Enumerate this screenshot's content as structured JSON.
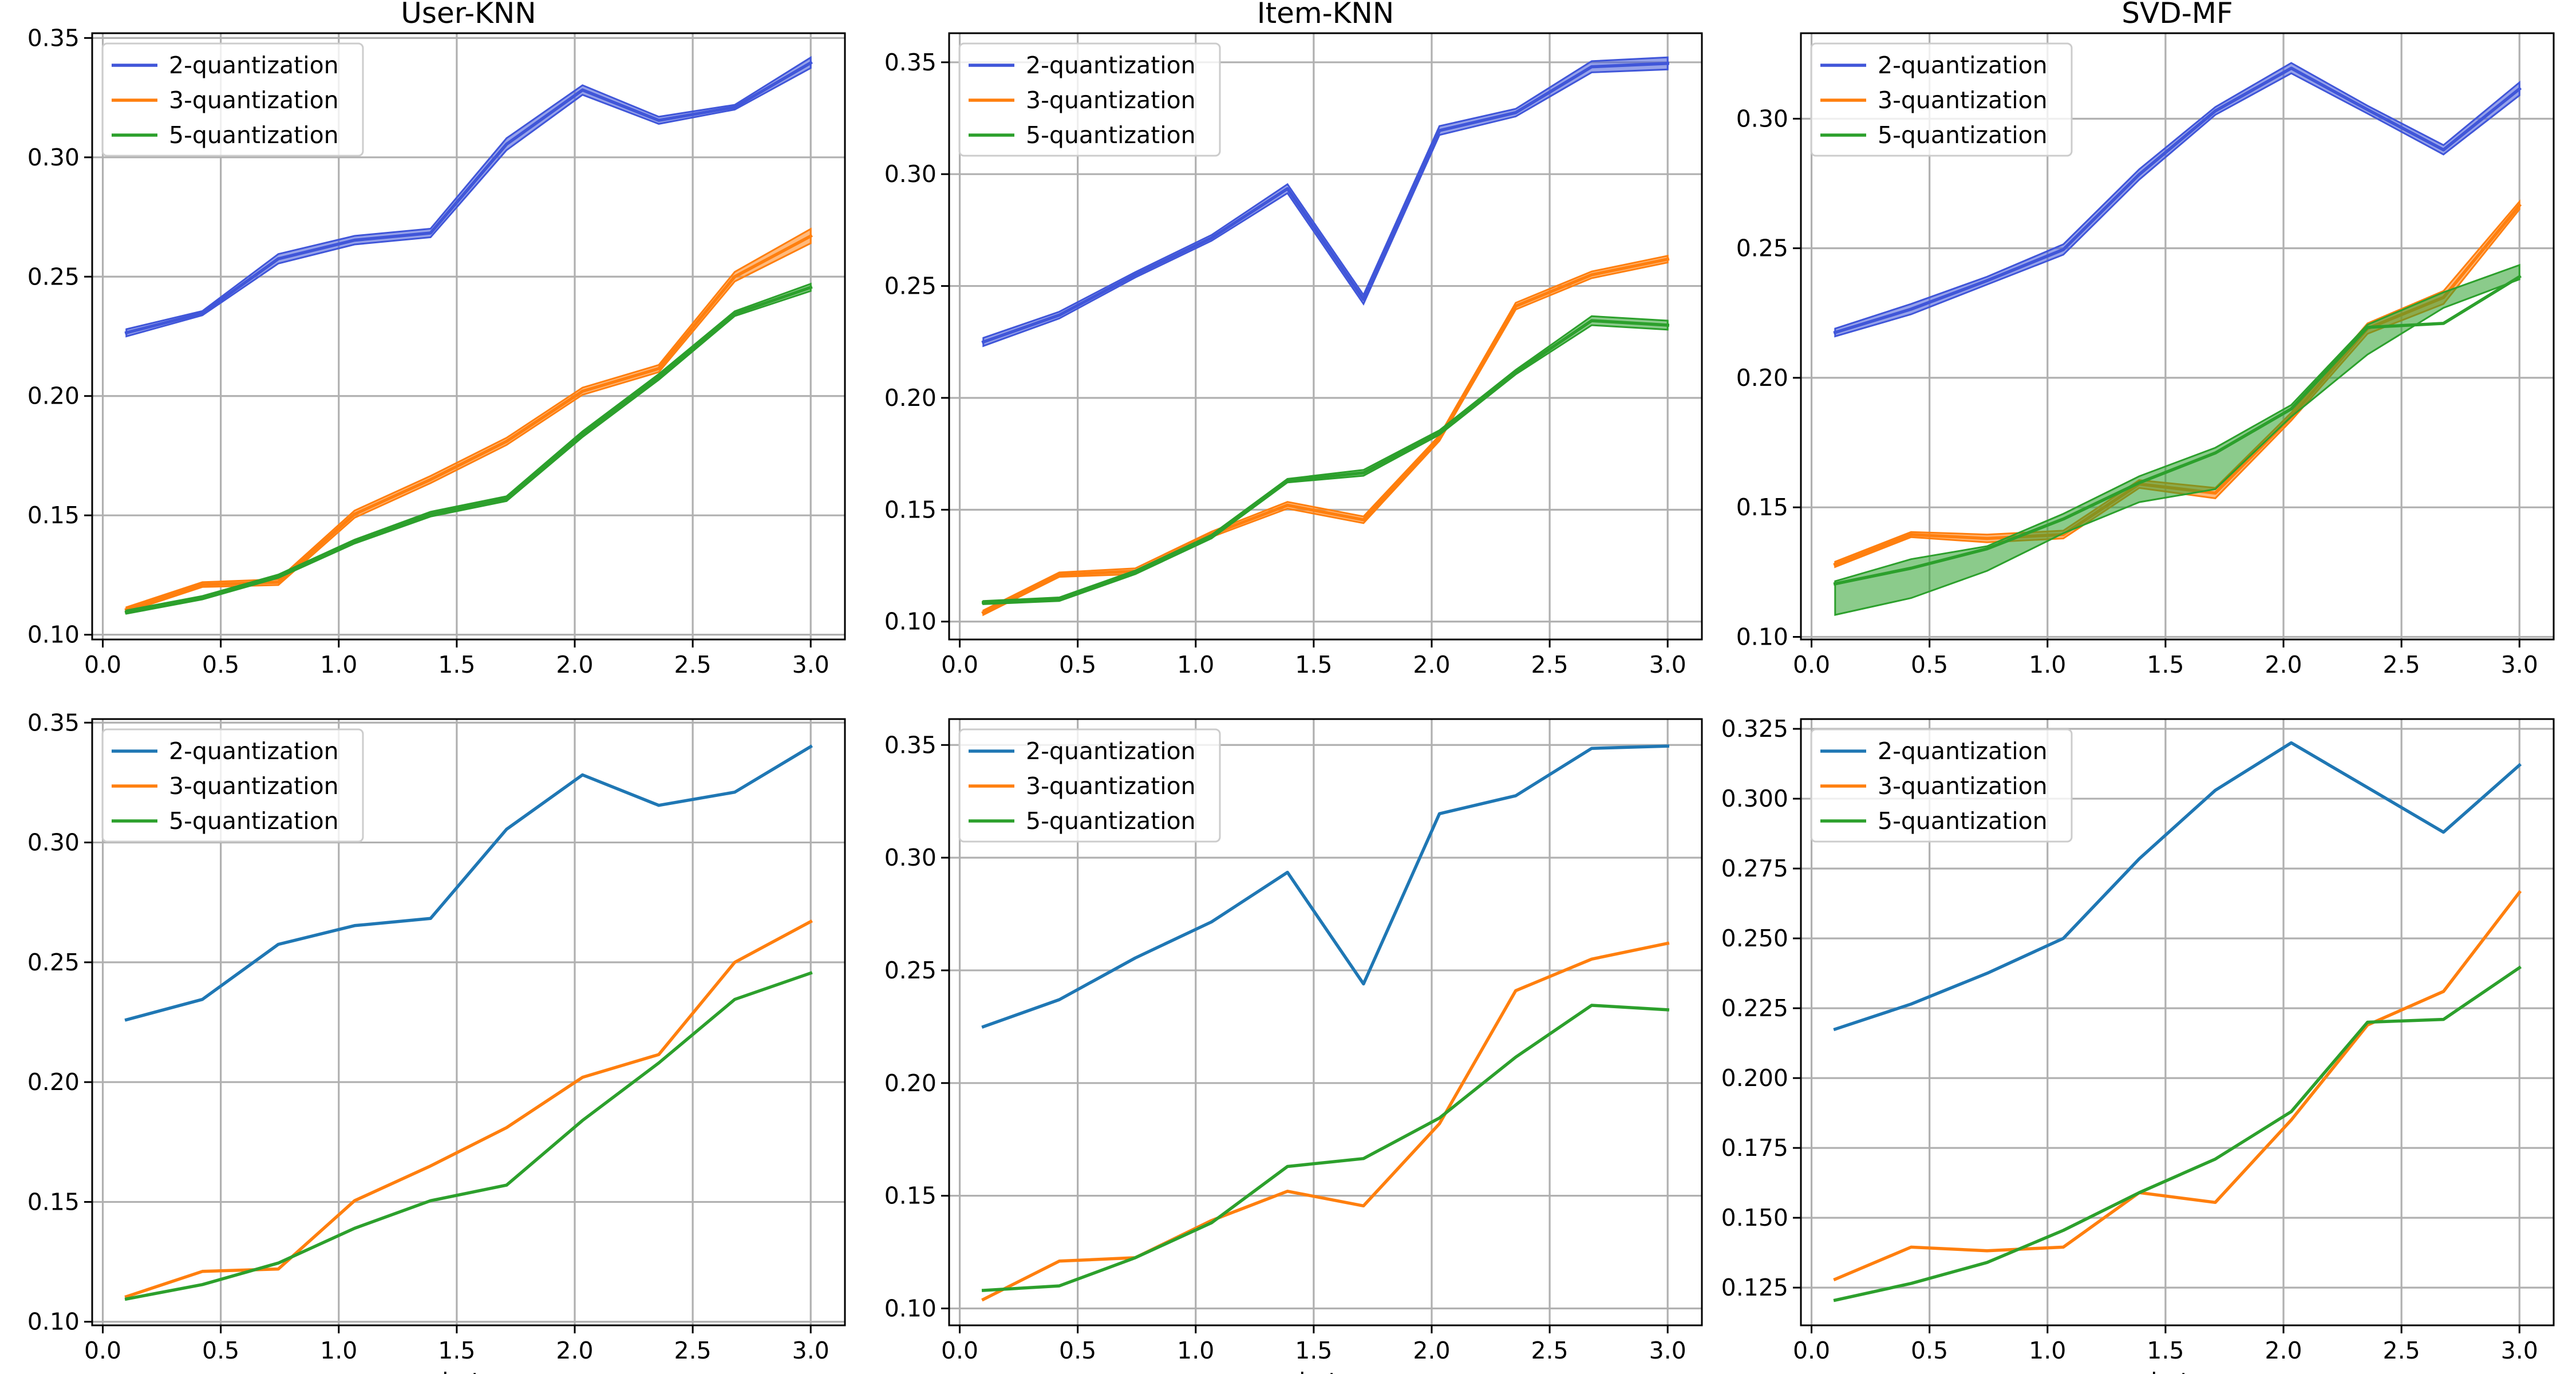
{
  "chart_data": [
    {
      "type": "line",
      "title": "User-KNN",
      "xlabel": "",
      "ylabel": "",
      "x": [
        0.1,
        0.422,
        0.744,
        1.067,
        1.389,
        1.711,
        2.033,
        2.356,
        2.678,
        3.0
      ],
      "xticks": [
        "0.0",
        "0.5",
        "1.0",
        "1.5",
        "2.0",
        "2.5",
        "3.0"
      ],
      "yticks": [
        "0.10",
        "0.15",
        "0.20",
        "0.25",
        "0.30",
        "0.35"
      ],
      "xlim": [
        -0.045,
        3.145
      ],
      "ylim": [
        0.098,
        0.352
      ],
      "grid": true,
      "legend": "top-left",
      "band": true,
      "series": [
        {
          "name": "2-quantization",
          "color": "#4056d9",
          "values": [
            0.2265,
            0.2347,
            0.2575,
            0.2653,
            0.2683,
            0.3055,
            0.3282,
            0.3155,
            0.321,
            0.3396
          ],
          "lower": [
            0.225,
            0.2338,
            0.2555,
            0.2635,
            0.2665,
            0.303,
            0.3262,
            0.314,
            0.32,
            0.3374
          ],
          "upper": [
            0.228,
            0.2356,
            0.2595,
            0.2671,
            0.2701,
            0.308,
            0.3302,
            0.317,
            0.322,
            0.3418
          ]
        },
        {
          "name": "3-quantization",
          "color": "#ff7f0e",
          "values": [
            0.1105,
            0.121,
            0.122,
            0.1505,
            0.165,
            0.181,
            0.202,
            0.2115,
            0.25,
            0.267
          ],
          "lower": [
            0.1095,
            0.12,
            0.1208,
            0.149,
            0.1635,
            0.1795,
            0.2005,
            0.21,
            0.248,
            0.264
          ],
          "upper": [
            0.1115,
            0.122,
            0.1232,
            0.152,
            0.1665,
            0.1825,
            0.2035,
            0.213,
            0.252,
            0.27
          ]
        },
        {
          "name": "5-quantization",
          "color": "#2ca02c",
          "values": [
            0.1095,
            0.1155,
            0.1245,
            0.139,
            0.1505,
            0.157,
            0.184,
            0.208,
            0.2345,
            0.2455
          ],
          "lower": [
            0.1088,
            0.1148,
            0.1238,
            0.1382,
            0.1495,
            0.156,
            0.1828,
            0.2068,
            0.2335,
            0.244
          ],
          "upper": [
            0.1102,
            0.1162,
            0.1252,
            0.1398,
            0.1515,
            0.158,
            0.1852,
            0.2092,
            0.2355,
            0.247
          ]
        }
      ]
    },
    {
      "type": "line",
      "title": "Item-KNN",
      "xlabel": "",
      "ylabel": "",
      "x": [
        0.1,
        0.422,
        0.744,
        1.067,
        1.389,
        1.711,
        2.033,
        2.356,
        2.678,
        3.0
      ],
      "xticks": [
        "0.0",
        "0.5",
        "1.0",
        "1.5",
        "2.0",
        "2.5",
        "3.0"
      ],
      "yticks": [
        "0.10",
        "0.15",
        "0.20",
        "0.25",
        "0.30",
        "0.35"
      ],
      "xlim": [
        -0.045,
        3.145
      ],
      "ylim": [
        0.092,
        0.363
      ],
      "grid": true,
      "legend": "top-left",
      "band": true,
      "series": [
        {
          "name": "2-quantization",
          "color": "#4056d9",
          "values": [
            0.225,
            0.237,
            0.255,
            0.2715,
            0.2935,
            0.244,
            0.3195,
            0.3275,
            0.348,
            0.3495
          ],
          "lower": [
            0.2232,
            0.2355,
            0.2538,
            0.2702,
            0.2915,
            0.242,
            0.3175,
            0.3258,
            0.3455,
            0.3468
          ],
          "upper": [
            0.2268,
            0.2385,
            0.2562,
            0.2728,
            0.2955,
            0.246,
            0.3215,
            0.3292,
            0.3505,
            0.3522
          ]
        },
        {
          "name": "3-quantization",
          "color": "#ff7f0e",
          "values": [
            0.104,
            0.121,
            0.1225,
            0.139,
            0.152,
            0.1455,
            0.182,
            0.241,
            0.255,
            0.262
          ],
          "lower": [
            0.103,
            0.12,
            0.1212,
            0.1378,
            0.1505,
            0.144,
            0.1808,
            0.2395,
            0.2535,
            0.2605
          ],
          "upper": [
            0.105,
            0.122,
            0.1238,
            0.1402,
            0.1535,
            0.147,
            0.1832,
            0.2425,
            0.2565,
            0.2635
          ]
        },
        {
          "name": "5-quantization",
          "color": "#2ca02c",
          "values": [
            0.1085,
            0.11,
            0.122,
            0.138,
            0.163,
            0.1665,
            0.1845,
            0.2115,
            0.2345,
            0.2325
          ],
          "lower": [
            0.1078,
            0.1092,
            0.1212,
            0.1372,
            0.1622,
            0.1652,
            0.1835,
            0.2105,
            0.2325,
            0.2305
          ],
          "upper": [
            0.1092,
            0.1108,
            0.1228,
            0.1388,
            0.1638,
            0.1678,
            0.1855,
            0.2125,
            0.2365,
            0.2345
          ]
        }
      ]
    },
    {
      "type": "line",
      "title": "SVD-MF",
      "xlabel": "",
      "ylabel": "",
      "x": [
        0.1,
        0.422,
        0.744,
        1.067,
        1.389,
        1.711,
        2.033,
        2.356,
        2.678,
        3.0
      ],
      "xticks": [
        "0.0",
        "0.5",
        "1.0",
        "1.5",
        "2.0",
        "2.5",
        "3.0"
      ],
      "yticks": [
        "0.10",
        "0.15",
        "0.20",
        "0.25",
        "0.30"
      ],
      "xlim": [
        -0.045,
        3.145
      ],
      "ylim": [
        0.099,
        0.333
      ],
      "grid": true,
      "legend": "top-left",
      "band": true,
      "series": [
        {
          "name": "2-quantization",
          "color": "#4056d9",
          "values": [
            0.2175,
            0.2265,
            0.2375,
            0.2495,
            0.2785,
            0.303,
            0.3195,
            0.3035,
            0.288,
            0.3115
          ],
          "lower": [
            0.216,
            0.2245,
            0.236,
            0.2475,
            0.2765,
            0.3015,
            0.3175,
            0.302,
            0.2862,
            0.309
          ],
          "upper": [
            0.219,
            0.2285,
            0.239,
            0.2515,
            0.2805,
            0.3045,
            0.3215,
            0.305,
            0.2898,
            0.314
          ]
        },
        {
          "name": "3-quantization",
          "color": "#ff7f0e",
          "values": [
            0.128,
            0.1395,
            0.138,
            0.1395,
            0.159,
            0.1555,
            0.185,
            0.219,
            0.231,
            0.2665
          ],
          "lower": [
            0.127,
            0.1385,
            0.1365,
            0.138,
            0.1575,
            0.1535,
            0.1835,
            0.217,
            0.2285,
            0.265
          ],
          "upper": [
            0.129,
            0.1405,
            0.1395,
            0.141,
            0.1605,
            0.1575,
            0.1865,
            0.221,
            0.2335,
            0.268
          ]
        },
        {
          "name": "5-quantization",
          "color": "#2ca02c",
          "values": [
            0.1205,
            0.1265,
            0.134,
            0.1455,
            0.1595,
            0.171,
            0.188,
            0.2195,
            0.221,
            0.239
          ],
          "lower": [
            0.1085,
            0.115,
            0.1255,
            0.14,
            0.152,
            0.157,
            0.185,
            0.209,
            0.227,
            0.238
          ],
          "upper": [
            0.1215,
            0.13,
            0.135,
            0.1475,
            0.162,
            0.173,
            0.1895,
            0.2205,
            0.233,
            0.2435
          ]
        }
      ]
    },
    {
      "type": "line",
      "title": "",
      "xlabel": "beta",
      "ylabel": "",
      "x": [
        0.1,
        0.422,
        0.744,
        1.067,
        1.389,
        1.711,
        2.033,
        2.356,
        2.678,
        3.0
      ],
      "xticks": [
        "0.0",
        "0.5",
        "1.0",
        "1.5",
        "2.0",
        "2.5",
        "3.0"
      ],
      "yticks": [
        "0.10",
        "0.15",
        "0.20",
        "0.25",
        "0.30",
        "0.35"
      ],
      "xlim": [
        -0.045,
        3.145
      ],
      "ylim": [
        0.0985,
        0.3515
      ],
      "grid": true,
      "legend": "top-left",
      "band": false,
      "series": [
        {
          "name": "2-quantization",
          "color": "#1f77b4",
          "values": [
            0.226,
            0.2345,
            0.2575,
            0.2653,
            0.2683,
            0.3055,
            0.3282,
            0.3155,
            0.321,
            0.34
          ]
        },
        {
          "name": "3-quantization",
          "color": "#ff7f0e",
          "values": [
            0.1105,
            0.121,
            0.122,
            0.1505,
            0.165,
            0.181,
            0.202,
            0.2115,
            0.25,
            0.267
          ]
        },
        {
          "name": "5-quantization",
          "color": "#2ca02c",
          "values": [
            0.1095,
            0.1155,
            0.1245,
            0.139,
            0.1505,
            0.157,
            0.184,
            0.208,
            0.2345,
            0.2455
          ]
        }
      ]
    },
    {
      "type": "line",
      "title": "",
      "xlabel": "beta",
      "ylabel": "",
      "x": [
        0.1,
        0.422,
        0.744,
        1.067,
        1.389,
        1.711,
        2.033,
        2.356,
        2.678,
        3.0
      ],
      "xticks": [
        "0.0",
        "0.5",
        "1.0",
        "1.5",
        "2.0",
        "2.5",
        "3.0"
      ],
      "yticks": [
        "0.10",
        "0.15",
        "0.20",
        "0.25",
        "0.30",
        "0.35"
      ],
      "xlim": [
        -0.045,
        3.145
      ],
      "ylim": [
        0.0925,
        0.3615
      ],
      "grid": true,
      "legend": "top-left",
      "band": false,
      "series": [
        {
          "name": "2-quantization",
          "color": "#1f77b4",
          "values": [
            0.225,
            0.237,
            0.2555,
            0.2715,
            0.2935,
            0.244,
            0.3195,
            0.3275,
            0.3485,
            0.3495
          ]
        },
        {
          "name": "3-quantization",
          "color": "#ff7f0e",
          "values": [
            0.104,
            0.121,
            0.1225,
            0.139,
            0.152,
            0.1455,
            0.182,
            0.241,
            0.255,
            0.262
          ]
        },
        {
          "name": "5-quantization",
          "color": "#2ca02c",
          "values": [
            0.108,
            0.11,
            0.1225,
            0.138,
            0.163,
            0.1665,
            0.1845,
            0.2115,
            0.2345,
            0.2325
          ]
        }
      ]
    },
    {
      "type": "line",
      "title": "",
      "xlabel": "beta",
      "ylabel": "",
      "x": [
        0.1,
        0.422,
        0.744,
        1.067,
        1.389,
        1.711,
        2.033,
        2.356,
        2.678,
        3.0
      ],
      "xticks": [
        "0.0",
        "0.5",
        "1.0",
        "1.5",
        "2.0",
        "2.5",
        "3.0"
      ],
      "yticks": [
        "0.125",
        "0.150",
        "0.175",
        "0.200",
        "0.225",
        "0.250",
        "0.275",
        "0.300",
        "0.325"
      ],
      "xlim": [
        -0.045,
        3.145
      ],
      "ylim": [
        0.1115,
        0.3285
      ],
      "grid": true,
      "legend": "top-left",
      "band": false,
      "series": [
        {
          "name": "2-quantization",
          "color": "#1f77b4",
          "values": [
            0.2175,
            0.2265,
            0.2375,
            0.25,
            0.2785,
            0.303,
            0.32,
            0.304,
            0.288,
            0.312
          ]
        },
        {
          "name": "3-quantization",
          "color": "#ff7f0e",
          "values": [
            0.128,
            0.1395,
            0.1382,
            0.1395,
            0.159,
            0.1555,
            0.185,
            0.219,
            0.231,
            0.2665
          ]
        },
        {
          "name": "5-quantization",
          "color": "#2ca02c",
          "values": [
            0.1205,
            0.1265,
            0.134,
            0.1455,
            0.159,
            0.171,
            0.188,
            0.22,
            0.221,
            0.2395
          ]
        }
      ]
    }
  ]
}
